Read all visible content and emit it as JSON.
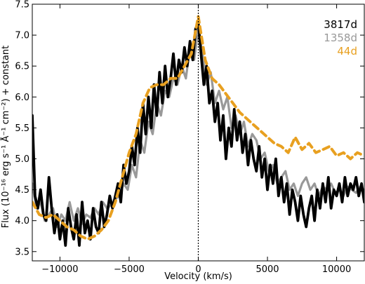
{
  "chart_data": {
    "type": "line",
    "title": "",
    "xlabel": "Velocity (km/s)",
    "ylabel": "Flux (10⁻¹⁶ erg s⁻¹ Å⁻¹ cm⁻²) + constant",
    "xlim": [
      -12000,
      12000
    ],
    "ylim": [
      3.35,
      7.5
    ],
    "xticks": [
      -10000,
      -5000,
      0,
      5000,
      10000
    ],
    "xtick_labels": [
      "−10000",
      "−5000",
      "0",
      "5000",
      "10000"
    ],
    "yticks": [
      3.5,
      4.0,
      4.5,
      5.0,
      5.5,
      6.0,
      6.5,
      7.0,
      7.5
    ],
    "ytick_labels": [
      "3.5",
      "4.0",
      "4.5",
      "5.0",
      "5.5",
      "6.0",
      "6.5",
      "7.0",
      "7.5"
    ],
    "grid": false,
    "legend_position": "top-right",
    "reference_line_x": 0,
    "series": [
      {
        "name": "1358d",
        "color": "#999999",
        "style": "solid",
        "x": [
          -12000,
          -11700,
          -11400,
          -11100,
          -10800,
          -10500,
          -10200,
          -9900,
          -9600,
          -9300,
          -9000,
          -8700,
          -8400,
          -8100,
          -7800,
          -7500,
          -7200,
          -6900,
          -6600,
          -6300,
          -6000,
          -5700,
          -5400,
          -5100,
          -4800,
          -4500,
          -4200,
          -3900,
          -3600,
          -3300,
          -3000,
          -2700,
          -2400,
          -2100,
          -1800,
          -1500,
          -1200,
          -900,
          -600,
          -300,
          0,
          300,
          600,
          900,
          1200,
          1500,
          1800,
          2100,
          2400,
          2700,
          3000,
          3300,
          3600,
          3900,
          4200,
          4500,
          4800,
          5100,
          5400,
          5700,
          6000,
          6300,
          6600,
          6900,
          7200,
          7500,
          7800,
          8100,
          8400,
          8700,
          9000,
          9300,
          9600,
          9900,
          10200,
          10500,
          10800,
          11100,
          11400,
          11700,
          12000
        ],
        "y": [
          4.6,
          4.2,
          4.3,
          4.0,
          4.1,
          4.2,
          3.9,
          4.1,
          4.0,
          4.3,
          4.0,
          4.2,
          3.95,
          4.1,
          4.05,
          4.2,
          4.1,
          4.3,
          4.2,
          4.25,
          4.35,
          4.4,
          4.6,
          4.5,
          4.9,
          4.7,
          5.3,
          5.1,
          5.6,
          5.4,
          5.9,
          5.7,
          6.1,
          6.0,
          6.3,
          6.2,
          6.5,
          6.3,
          6.8,
          6.6,
          7.1,
          6.7,
          6.2,
          6.4,
          5.9,
          6.1,
          5.8,
          6.0,
          5.5,
          5.7,
          5.4,
          5.6,
          5.2,
          5.4,
          5.3,
          5.0,
          5.1,
          4.8,
          4.9,
          4.6,
          4.7,
          4.8,
          4.5,
          4.6,
          4.4,
          4.6,
          4.7,
          4.5,
          4.6,
          4.4,
          4.55,
          4.5,
          4.6,
          4.45,
          4.5,
          4.4,
          4.55,
          4.5,
          4.45,
          4.55,
          4.5
        ]
      },
      {
        "name": "3817d",
        "color": "#000000",
        "style": "solid",
        "x": [
          -12000,
          -11800,
          -11600,
          -11400,
          -11200,
          -11000,
          -10800,
          -10600,
          -10400,
          -10200,
          -10000,
          -9800,
          -9600,
          -9400,
          -9200,
          -9000,
          -8800,
          -8600,
          -8400,
          -8200,
          -8000,
          -7800,
          -7600,
          -7400,
          -7200,
          -7000,
          -6800,
          -6600,
          -6400,
          -6200,
          -6000,
          -5800,
          -5600,
          -5400,
          -5200,
          -5000,
          -4800,
          -4600,
          -4400,
          -4200,
          -4000,
          -3800,
          -3600,
          -3400,
          -3200,
          -3000,
          -2800,
          -2600,
          -2400,
          -2200,
          -2000,
          -1800,
          -1600,
          -1400,
          -1200,
          -1000,
          -800,
          -600,
          -400,
          -200,
          0,
          200,
          400,
          600,
          800,
          1000,
          1200,
          1400,
          1600,
          1800,
          2000,
          2200,
          2400,
          2600,
          2800,
          3000,
          3200,
          3400,
          3600,
          3800,
          4000,
          4200,
          4400,
          4600,
          4800,
          5000,
          5200,
          5400,
          5600,
          5800,
          6000,
          6200,
          6400,
          6600,
          6800,
          7000,
          7200,
          7400,
          7600,
          7800,
          8000,
          8200,
          8400,
          8600,
          8800,
          9000,
          9200,
          9400,
          9600,
          9800,
          10000,
          10200,
          10400,
          10600,
          10800,
          11000,
          11200,
          11400,
          11600,
          11800,
          12000
        ],
        "y": [
          5.7,
          4.4,
          4.2,
          4.5,
          4.1,
          4.0,
          4.7,
          4.2,
          3.8,
          4.1,
          3.7,
          4.0,
          3.6,
          4.2,
          3.9,
          3.7,
          4.1,
          3.6,
          4.3,
          3.8,
          4.0,
          3.7,
          4.2,
          3.9,
          3.8,
          4.3,
          3.9,
          4.1,
          4.4,
          4.2,
          4.4,
          4.6,
          4.3,
          4.9,
          4.6,
          4.8,
          5.2,
          4.9,
          5.5,
          5.1,
          5.9,
          5.4,
          6.0,
          5.5,
          6.2,
          5.7,
          6.4,
          5.9,
          6.5,
          6.0,
          6.3,
          6.7,
          6.2,
          6.6,
          6.4,
          6.8,
          6.5,
          6.9,
          6.6,
          7.1,
          7.2,
          6.7,
          6.2,
          6.5,
          5.9,
          6.1,
          5.6,
          5.9,
          5.3,
          5.7,
          5.0,
          5.5,
          5.2,
          5.8,
          5.3,
          5.6,
          5.1,
          5.4,
          4.9,
          5.3,
          5.0,
          4.8,
          5.2,
          4.7,
          5.0,
          4.5,
          4.9,
          4.6,
          5.0,
          4.4,
          4.7,
          4.3,
          4.6,
          4.1,
          4.5,
          4.3,
          4.0,
          4.4,
          4.1,
          3.9,
          4.2,
          4.4,
          4.0,
          4.5,
          4.2,
          4.6,
          4.3,
          4.7,
          4.2,
          4.5,
          4.4,
          4.6,
          4.3,
          4.7,
          4.4,
          4.6,
          4.5,
          4.7,
          4.4,
          4.6,
          4.3
        ]
      },
      {
        "name": "44d",
        "color": "#E8A020",
        "style": "dashed",
        "x": [
          -12000,
          -11500,
          -11000,
          -10500,
          -10000,
          -9500,
          -9000,
          -8500,
          -8000,
          -7500,
          -7000,
          -6500,
          -6000,
          -5500,
          -5000,
          -4500,
          -4000,
          -3500,
          -3000,
          -2500,
          -2000,
          -1500,
          -1000,
          -500,
          0,
          500,
          1000,
          1500,
          2000,
          2500,
          3000,
          3500,
          4000,
          4500,
          5000,
          5500,
          6000,
          6500,
          7000,
          7500,
          8000,
          8500,
          9000,
          9500,
          10000,
          10500,
          11000,
          11500,
          12000
        ],
        "y": [
          4.3,
          4.1,
          4.05,
          4.1,
          4.0,
          3.9,
          3.85,
          3.75,
          3.7,
          3.75,
          3.85,
          4.0,
          4.3,
          4.7,
          5.1,
          5.4,
          5.9,
          6.15,
          6.2,
          6.2,
          6.3,
          6.3,
          6.5,
          6.7,
          7.3,
          6.6,
          6.3,
          6.2,
          6.05,
          5.9,
          5.75,
          5.65,
          5.55,
          5.45,
          5.35,
          5.25,
          5.2,
          5.1,
          5.35,
          5.15,
          5.25,
          5.1,
          5.15,
          5.2,
          5.05,
          5.1,
          5.0,
          5.1,
          5.05
        ]
      }
    ]
  }
}
